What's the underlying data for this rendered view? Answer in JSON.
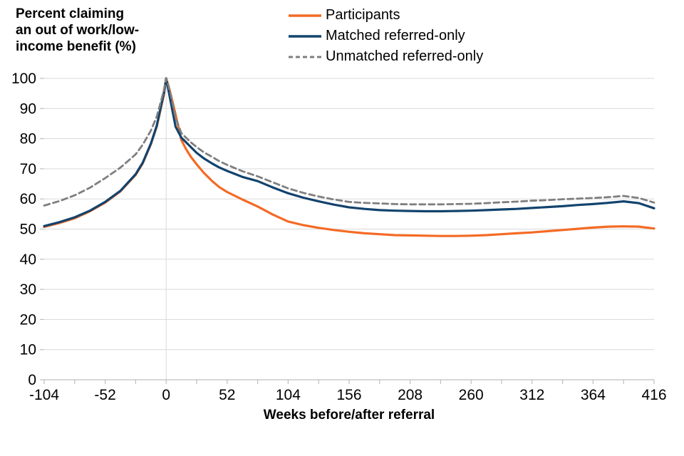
{
  "chart_data": {
    "type": "line",
    "title": "",
    "ylabel": "Percent claiming an out of work/low-income benefit (%)",
    "ylabel_lines": [
      "Percent claiming",
      "an out of work/low-",
      "income benefit (%)"
    ],
    "xlabel": "Weeks before/after referral",
    "xlim": [
      -104,
      416
    ],
    "ylim": [
      0,
      100
    ],
    "x_ticks": [
      -104,
      -52,
      0,
      52,
      104,
      156,
      208,
      260,
      312,
      364,
      416
    ],
    "x_minor_tick_step": 26,
    "y_ticks": [
      0,
      10,
      20,
      30,
      40,
      50,
      60,
      70,
      80,
      90,
      100
    ],
    "grid": "horizontal",
    "reference_line_x": 0,
    "legend_position": "top-center",
    "x": [
      -104,
      -91,
      -78,
      -65,
      -52,
      -39,
      -26,
      -20,
      -13,
      -8,
      -4,
      -2,
      0,
      2,
      4,
      8,
      13,
      17,
      21,
      26,
      32,
      39,
      45,
      52,
      65,
      78,
      91,
      104,
      117,
      130,
      143,
      156,
      169,
      182,
      195,
      208,
      221,
      234,
      247,
      260,
      273,
      286,
      299,
      312,
      325,
      338,
      351,
      364,
      377,
      390,
      403,
      416
    ],
    "series": [
      {
        "name": "Participants",
        "color": "#F46A25",
        "style": "solid",
        "values": [
          50.7,
          52.0,
          53.6,
          55.9,
          58.8,
          62.5,
          68.0,
          71.8,
          78.2,
          84.0,
          91.0,
          94.5,
          100,
          97.5,
          94.5,
          88.0,
          79.5,
          76.5,
          74.0,
          71.5,
          68.7,
          66.0,
          64.0,
          62.3,
          59.8,
          57.5,
          54.8,
          52.5,
          51.3,
          50.4,
          49.7,
          49.1,
          48.6,
          48.3,
          48.0,
          47.9,
          47.8,
          47.7,
          47.7,
          47.8,
          48.0,
          48.3,
          48.6,
          48.9,
          49.3,
          49.7,
          50.1,
          50.5,
          50.8,
          50.9,
          50.8,
          50.2
        ]
      },
      {
        "name": "Matched referred-only",
        "color": "#12436D",
        "style": "solid",
        "values": [
          51.0,
          52.3,
          53.9,
          56.1,
          59.0,
          62.7,
          68.2,
          72.0,
          78.4,
          84.3,
          91.5,
          95.0,
          100,
          96.0,
          92.0,
          84.0,
          80.3,
          78.8,
          77.2,
          75.3,
          73.5,
          71.8,
          70.5,
          69.3,
          67.3,
          65.9,
          63.8,
          61.9,
          60.4,
          59.2,
          58.1,
          57.2,
          56.7,
          56.3,
          56.1,
          56.0,
          55.9,
          55.9,
          56.0,
          56.1,
          56.3,
          56.5,
          56.7,
          57.0,
          57.3,
          57.6,
          58.0,
          58.3,
          58.7,
          59.2,
          58.6,
          56.9
        ]
      },
      {
        "name": "Unmatched referred-only",
        "color": "#7F7F7F",
        "style": "dashed",
        "values": [
          57.8,
          59.3,
          61.2,
          63.7,
          66.9,
          70.4,
          74.8,
          78.0,
          82.7,
          87.3,
          93.0,
          96.0,
          100,
          97.5,
          94.5,
          87.0,
          81.8,
          80.3,
          78.8,
          77.2,
          75.5,
          74.0,
          72.6,
          71.3,
          69.2,
          67.5,
          65.5,
          63.5,
          62.0,
          60.8,
          59.8,
          59.0,
          58.7,
          58.5,
          58.3,
          58.2,
          58.2,
          58.2,
          58.3,
          58.4,
          58.6,
          58.9,
          59.1,
          59.4,
          59.6,
          59.9,
          60.1,
          60.3,
          60.6,
          61.0,
          60.3,
          58.8
        ]
      }
    ]
  },
  "colors": {
    "gridline": "#D9D9D9",
    "axis": "#BFBFBF",
    "reference_line": "#D9D9D9",
    "text": "#000000"
  }
}
